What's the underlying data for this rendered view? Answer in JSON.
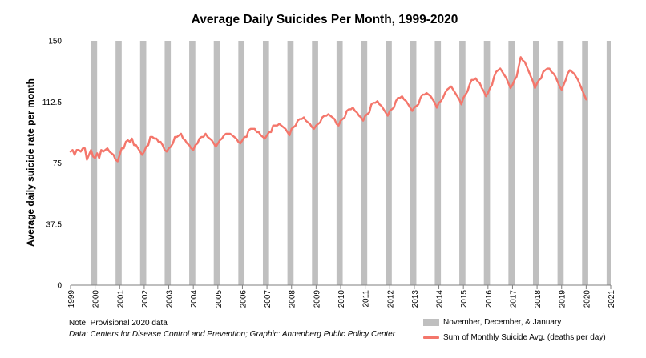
{
  "chart_data": {
    "type": "line",
    "title": "Average Daily Suicides Per Month, 1999-2020",
    "ylabel": "Average daily suicide rate per month",
    "xlabel": "",
    "ylim": [
      0,
      150
    ],
    "yticks": [
      0,
      37.5,
      75,
      112.5,
      150
    ],
    "ytick_labels": [
      "0",
      "37.5",
      "75",
      "112.5",
      "150"
    ],
    "x_start": "1999-01",
    "x_end": "2021-01",
    "xtick_labels": [
      "1999",
      "2000",
      "2001",
      "2002",
      "2003",
      "2004",
      "2005",
      "2006",
      "2007",
      "2008",
      "2009",
      "2010",
      "2011",
      "2012",
      "2013",
      "2014",
      "2015",
      "2016",
      "2017",
      "2018",
      "2019",
      "2020",
      "2021"
    ],
    "grid": false,
    "legend_position": "bottom-right",
    "series": [
      {
        "name": "Sum of Monthly Suicide Avg. (deaths per day)",
        "color": "#f4766b",
        "x_start": "1999-01",
        "values": [
          82,
          83,
          80,
          83,
          83,
          82,
          84,
          84,
          77,
          80,
          83,
          79,
          78,
          81,
          78,
          83,
          82,
          83,
          84,
          82,
          81,
          80,
          77,
          76,
          80,
          84,
          84,
          88,
          89,
          88,
          90,
          86,
          86,
          84,
          82,
          80,
          82,
          85,
          86,
          91,
          91,
          90,
          90,
          88,
          88,
          86,
          83,
          82,
          84,
          85,
          87,
          91,
          91,
          92,
          93,
          90,
          89,
          87,
          86,
          84,
          83,
          86,
          87,
          90,
          91,
          91,
          93,
          91,
          90,
          89,
          87,
          85,
          87,
          89,
          90,
          92,
          93,
          93,
          93,
          92,
          91,
          90,
          88,
          87,
          89,
          91,
          91,
          95,
          96,
          96,
          96,
          94,
          94,
          92,
          91,
          90,
          92,
          94,
          94,
          98,
          98,
          98,
          99,
          98,
          97,
          96,
          94,
          92,
          96,
          97,
          98,
          101,
          102,
          102,
          103,
          101,
          100,
          99,
          97,
          96,
          98,
          99,
          100,
          103,
          104,
          104,
          105,
          104,
          103,
          102,
          99,
          98,
          101,
          102,
          103,
          107,
          108,
          108,
          109,
          107,
          106,
          104,
          103,
          101,
          104,
          105,
          106,
          111,
          112,
          112,
          113,
          111,
          110,
          108,
          106,
          104,
          107,
          108,
          109,
          113,
          115,
          115,
          116,
          114,
          113,
          111,
          109,
          107,
          109,
          110,
          111,
          115,
          117,
          117,
          118,
          117,
          116,
          114,
          112,
          109,
          112,
          113,
          115,
          118,
          120,
          121,
          122,
          120,
          118,
          116,
          114,
          111,
          115,
          117,
          119,
          123,
          126,
          126,
          127,
          125,
          124,
          121,
          119,
          116,
          118,
          121,
          123,
          128,
          131,
          132,
          133,
          131,
          129,
          127,
          124,
          121,
          123,
          126,
          128,
          134,
          140,
          138,
          137,
          134,
          131,
          128,
          125,
          121,
          124,
          126,
          127,
          131,
          132,
          133,
          133,
          131,
          130,
          128,
          125,
          122,
          120,
          123,
          126,
          130,
          132,
          131,
          130,
          128,
          126,
          123,
          120,
          117,
          114
        ]
      }
    ],
    "bands": {
      "name": "November, December, & January",
      "color": "#bfbfbf",
      "months": [
        "Nov",
        "Dec",
        "Jan"
      ]
    }
  },
  "notes": {
    "note": "Note: Provisional 2020 data",
    "source": "Data: Centers for Disease Control and Prevention; Graphic: Annenberg Public Policy Center"
  },
  "legend": {
    "bands_label": "November, December, & January",
    "line_label": "Sum of Monthly Suicide Avg. (deaths per day)"
  }
}
